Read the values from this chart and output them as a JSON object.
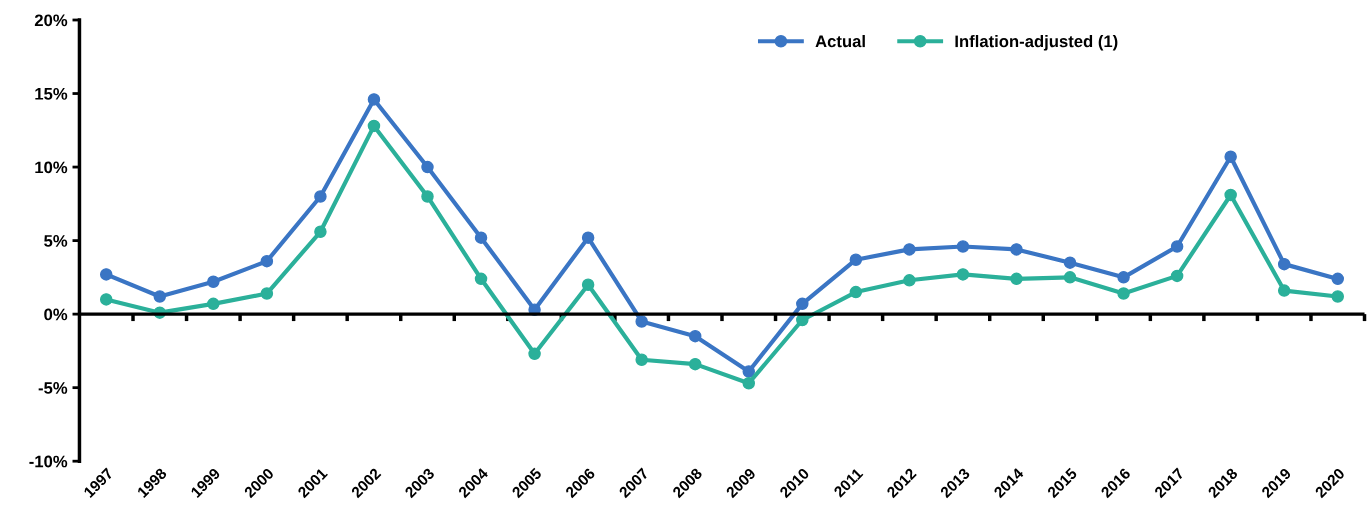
{
  "chart_data": {
    "type": "line",
    "categories": [
      "1997",
      "1998",
      "1999",
      "2000",
      "2001",
      "2002",
      "2003",
      "2004",
      "2005",
      "2006",
      "2007",
      "2008",
      "2009",
      "2010",
      "2011",
      "2012",
      "2013",
      "2014",
      "2015",
      "2016",
      "2017",
      "2018",
      "2019",
      "2020"
    ],
    "series": [
      {
        "name": "Actual",
        "color": "#3a75c4",
        "values": [
          2.7,
          1.2,
          2.2,
          3.6,
          8.0,
          14.6,
          10.0,
          5.2,
          0.3,
          5.2,
          -0.5,
          -1.5,
          -3.9,
          0.7,
          3.7,
          4.4,
          4.6,
          4.4,
          3.5,
          2.5,
          4.6,
          10.7,
          3.4,
          2.4
        ]
      },
      {
        "name": "Inflation-adjusted (1)",
        "color": "#2bb09a",
        "values": [
          1.0,
          0.1,
          0.7,
          1.4,
          5.6,
          12.8,
          8.0,
          2.4,
          -2.7,
          2.0,
          -3.1,
          -3.4,
          -4.7,
          -0.4,
          1.5,
          2.3,
          2.7,
          2.4,
          2.5,
          1.4,
          2.6,
          8.1,
          1.6,
          1.2
        ]
      }
    ],
    "ylim": [
      -10,
      20
    ],
    "yticks": [
      {
        "value": -10,
        "label": "-10%"
      },
      {
        "value": -5,
        "label": "-5%"
      },
      {
        "value": 0,
        "label": "0%"
      },
      {
        "value": 5,
        "label": "5%"
      },
      {
        "value": 10,
        "label": "10%"
      },
      {
        "value": 15,
        "label": "15%"
      },
      {
        "value": 20,
        "label": "20%"
      }
    ],
    "ref_lines": [
      {
        "axis": "y",
        "value": 0,
        "color": "#000000",
        "line_style": "solid"
      }
    ],
    "legend": "top right",
    "marker": "circle",
    "line_style": "solid"
  }
}
